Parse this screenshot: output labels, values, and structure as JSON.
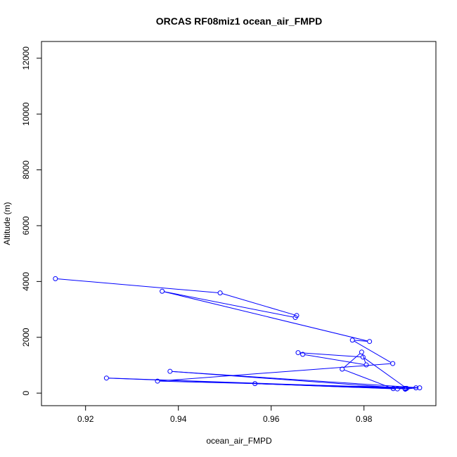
{
  "chart_data": {
    "type": "line",
    "title": "ORCAS RF08miz1 ocean_air_FMPD",
    "xlabel": "ocean_air_FMPD",
    "ylabel": "Altitude (m)",
    "xlim": [
      0.9105,
      0.9955
    ],
    "ylim": [
      -450,
      12600
    ],
    "xticks": [
      0.92,
      0.94,
      0.96,
      0.98
    ],
    "xtick_labels": [
      "0.92",
      "0.94",
      "0.96",
      "0.98"
    ],
    "yticks": [
      0,
      2000,
      4000,
      6000,
      8000,
      10000,
      12000
    ],
    "ytick_labels": [
      "0",
      "2000",
      "4000",
      "6000",
      "8000",
      "10000",
      "12000"
    ],
    "grid": false,
    "series_color": "#0000ff",
    "markers": "open-circle",
    "series": [
      {
        "x": [
          0.9135,
          0.949,
          0.9655,
          0.9652,
          0.9365,
          0.9812,
          0.9775,
          0.9862,
          0.9355,
          0.9912,
          0.9889,
          0.9888,
          0.9382,
          0.992,
          0.9872,
          0.9245,
          0.9892,
          0.9798,
          0.9658,
          0.9668,
          0.9805,
          0.9795,
          0.9753,
          0.9863,
          0.9565,
          0.9889
        ],
        "y": [
          4100,
          3590,
          2780,
          2710,
          3650,
          1850,
          1900,
          1060,
          430,
          190,
          140,
          170,
          780,
          190,
          150,
          540,
          170,
          1290,
          1450,
          1390,
          1010,
          1470,
          860,
          160,
          340,
          160
        ]
      }
    ]
  }
}
